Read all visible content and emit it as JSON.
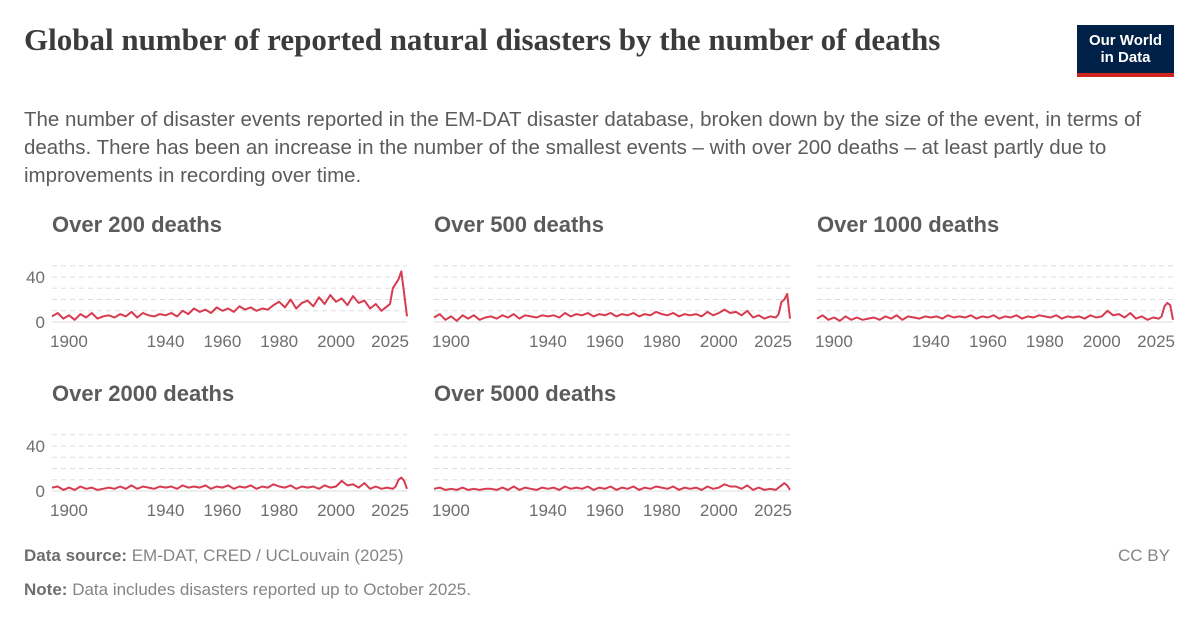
{
  "header": {
    "title": "Global number of reported natural disasters by the number of deaths",
    "subtitle": "The number of disaster events reported in the EM-DAT disaster database, broken down by the size of the event, in terms of deaths. There has been an increase in the number of the smallest events – with over 200 deaths – at least partly due to improvements in recording over time.",
    "logo_line1": "Our World",
    "logo_line2": "in Data"
  },
  "footer": {
    "source_label": "Data source:",
    "source_text": "EM-DAT, CRED / UCLouvain (2025)",
    "note_label": "Note:",
    "note_text": "Data includes disasters reported up to October 2025.",
    "license": "CC BY"
  },
  "colors": {
    "line": "#d73b50",
    "grid": "#dddddd",
    "text": "#5b5b5b",
    "logo_bg": "#002147",
    "logo_accent": "#ce261e"
  },
  "chart_data": [
    {
      "type": "line",
      "title": "Over 200 deaths",
      "xlim": [
        1900,
        2025
      ],
      "ylim": [
        0,
        50
      ],
      "yticks": [
        0,
        40
      ],
      "xticks": [
        1900,
        1940,
        1960,
        1980,
        2000,
        2025
      ],
      "x": [
        1900,
        1902,
        1904,
        1906,
        1908,
        1910,
        1912,
        1914,
        1916,
        1918,
        1920,
        1922,
        1924,
        1926,
        1928,
        1930,
        1932,
        1934,
        1936,
        1938,
        1940,
        1942,
        1944,
        1946,
        1948,
        1950,
        1952,
        1954,
        1956,
        1958,
        1960,
        1962,
        1964,
        1966,
        1968,
        1970,
        1972,
        1974,
        1976,
        1978,
        1980,
        1982,
        1984,
        1986,
        1988,
        1990,
        1992,
        1994,
        1996,
        1998,
        2000,
        2002,
        2004,
        2006,
        2008,
        2010,
        2012,
        2014,
        2016,
        2018,
        2019,
        2020,
        2021,
        2022,
        2023,
        2024,
        2025
      ],
      "values": [
        5,
        8,
        3,
        6,
        2,
        7,
        4,
        8,
        3,
        5,
        6,
        4,
        7,
        5,
        9,
        4,
        8,
        6,
        5,
        7,
        6,
        8,
        5,
        10,
        7,
        12,
        9,
        11,
        8,
        13,
        10,
        12,
        9,
        14,
        11,
        13,
        10,
        12,
        11,
        15,
        18,
        13,
        20,
        12,
        17,
        19,
        14,
        22,
        16,
        24,
        18,
        21,
        15,
        23,
        17,
        19,
        12,
        16,
        10,
        14,
        16,
        30,
        34,
        38,
        45,
        25,
        5
      ]
    },
    {
      "type": "line",
      "title": "Over 500 deaths",
      "xlim": [
        1900,
        2025
      ],
      "ylim": [
        0,
        50
      ],
      "yticks": [
        0,
        40
      ],
      "xticks": [
        1900,
        1940,
        1960,
        1980,
        2000,
        2025
      ],
      "x": [
        1900,
        1902,
        1904,
        1906,
        1908,
        1910,
        1912,
        1914,
        1916,
        1918,
        1920,
        1922,
        1924,
        1926,
        1928,
        1930,
        1932,
        1934,
        1936,
        1938,
        1940,
        1942,
        1944,
        1946,
        1948,
        1950,
        1952,
        1954,
        1956,
        1958,
        1960,
        1962,
        1964,
        1966,
        1968,
        1970,
        1972,
        1974,
        1976,
        1978,
        1980,
        1982,
        1984,
        1986,
        1988,
        1990,
        1992,
        1994,
        1996,
        1998,
        2000,
        2002,
        2004,
        2006,
        2008,
        2010,
        2012,
        2014,
        2016,
        2018,
        2020,
        2021,
        2022,
        2023,
        2024,
        2025
      ],
      "values": [
        4,
        7,
        2,
        5,
        1,
        6,
        3,
        6,
        2,
        4,
        5,
        3,
        6,
        4,
        7,
        3,
        6,
        5,
        4,
        6,
        5,
        6,
        4,
        8,
        5,
        7,
        6,
        8,
        5,
        7,
        6,
        8,
        5,
        7,
        6,
        8,
        5,
        7,
        6,
        9,
        7,
        6,
        8,
        5,
        7,
        6,
        7,
        5,
        9,
        6,
        8,
        11,
        8,
        9,
        6,
        10,
        4,
        6,
        3,
        5,
        4,
        7,
        18,
        20,
        25,
        3
      ]
    },
    {
      "type": "line",
      "title": "Over 1000 deaths",
      "xlim": [
        1900,
        2025
      ],
      "ylim": [
        0,
        50
      ],
      "yticks": [
        0,
        40
      ],
      "xticks": [
        1900,
        1940,
        1960,
        1980,
        2000,
        2025
      ],
      "x": [
        1900,
        1902,
        1904,
        1906,
        1908,
        1910,
        1912,
        1914,
        1916,
        1918,
        1920,
        1922,
        1924,
        1926,
        1928,
        1930,
        1932,
        1934,
        1936,
        1938,
        1940,
        1942,
        1944,
        1946,
        1948,
        1950,
        1952,
        1954,
        1956,
        1958,
        1960,
        1962,
        1964,
        1966,
        1968,
        1970,
        1972,
        1974,
        1976,
        1978,
        1980,
        1982,
        1984,
        1986,
        1988,
        1990,
        1992,
        1994,
        1996,
        1998,
        2000,
        2002,
        2004,
        2006,
        2008,
        2010,
        2012,
        2014,
        2016,
        2018,
        2020,
        2021,
        2022,
        2023,
        2024,
        2025
      ],
      "values": [
        3,
        6,
        2,
        4,
        1,
        5,
        2,
        4,
        2,
        3,
        4,
        2,
        5,
        3,
        6,
        2,
        5,
        4,
        3,
        5,
        4,
        5,
        3,
        6,
        4,
        5,
        4,
        6,
        3,
        5,
        4,
        6,
        3,
        5,
        4,
        6,
        3,
        5,
        4,
        6,
        5,
        4,
        6,
        3,
        5,
        4,
        5,
        3,
        6,
        4,
        5,
        10,
        6,
        7,
        4,
        8,
        3,
        5,
        2,
        4,
        3,
        5,
        14,
        17,
        15,
        2
      ]
    },
    {
      "type": "line",
      "title": "Over 2000 deaths",
      "xlim": [
        1900,
        2025
      ],
      "ylim": [
        0,
        50
      ],
      "yticks": [
        0,
        40
      ],
      "xticks": [
        1900,
        1940,
        1960,
        1980,
        2000,
        2025
      ],
      "x": [
        1900,
        1902,
        1904,
        1906,
        1908,
        1910,
        1912,
        1914,
        1916,
        1918,
        1920,
        1922,
        1924,
        1926,
        1928,
        1930,
        1932,
        1934,
        1936,
        1938,
        1940,
        1942,
        1944,
        1946,
        1948,
        1950,
        1952,
        1954,
        1956,
        1958,
        1960,
        1962,
        1964,
        1966,
        1968,
        1970,
        1972,
        1974,
        1976,
        1978,
        1980,
        1982,
        1984,
        1986,
        1988,
        1990,
        1992,
        1994,
        1996,
        1998,
        2000,
        2002,
        2004,
        2006,
        2008,
        2010,
        2012,
        2014,
        2016,
        2018,
        2020,
        2021,
        2022,
        2023,
        2024,
        2025
      ],
      "values": [
        3,
        4,
        1,
        3,
        1,
        4,
        2,
        3,
        1,
        2,
        3,
        2,
        4,
        2,
        5,
        2,
        4,
        3,
        2,
        4,
        3,
        4,
        2,
        5,
        3,
        4,
        3,
        5,
        2,
        4,
        3,
        5,
        2,
        4,
        3,
        5,
        2,
        4,
        3,
        6,
        4,
        3,
        5,
        2,
        4,
        3,
        4,
        2,
        5,
        3,
        4,
        9,
        5,
        6,
        3,
        7,
        2,
        4,
        2,
        3,
        2,
        4,
        10,
        12,
        9,
        2
      ]
    },
    {
      "type": "line",
      "title": "Over 5000 deaths",
      "xlim": [
        1900,
        2025
      ],
      "ylim": [
        0,
        50
      ],
      "yticks": [
        0,
        40
      ],
      "xticks": [
        1900,
        1940,
        1960,
        1980,
        2000,
        2025
      ],
      "x": [
        1900,
        1902,
        1904,
        1906,
        1908,
        1910,
        1912,
        1914,
        1916,
        1918,
        1920,
        1922,
        1924,
        1926,
        1928,
        1930,
        1932,
        1934,
        1936,
        1938,
        1940,
        1942,
        1944,
        1946,
        1948,
        1950,
        1952,
        1954,
        1956,
        1958,
        1960,
        1962,
        1964,
        1966,
        1968,
        1970,
        1972,
        1974,
        1976,
        1978,
        1980,
        1982,
        1984,
        1986,
        1988,
        1990,
        1992,
        1994,
        1996,
        1998,
        2000,
        2002,
        2004,
        2006,
        2008,
        2010,
        2012,
        2014,
        2016,
        2018,
        2020,
        2021,
        2022,
        2023,
        2024,
        2025
      ],
      "values": [
        2,
        3,
        1,
        2,
        1,
        3,
        1,
        2,
        1,
        2,
        2,
        1,
        3,
        1,
        4,
        1,
        3,
        2,
        1,
        3,
        2,
        3,
        1,
        4,
        2,
        3,
        2,
        4,
        1,
        3,
        2,
        4,
        1,
        3,
        2,
        4,
        1,
        3,
        2,
        4,
        3,
        2,
        4,
        1,
        3,
        2,
        3,
        1,
        4,
        2,
        3,
        6,
        4,
        4,
        2,
        5,
        1,
        3,
        1,
        2,
        1,
        3,
        5,
        7,
        5,
        1
      ]
    }
  ]
}
